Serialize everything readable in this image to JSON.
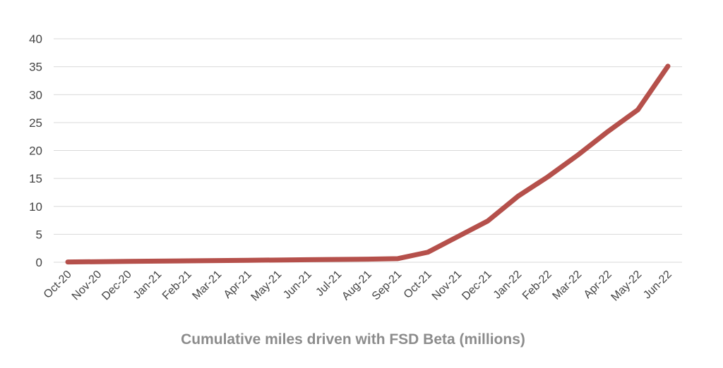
{
  "chart_data": {
    "type": "line",
    "title": "",
    "xlabel": "Cumulative miles driven with FSD Beta (millions)",
    "ylabel": "",
    "categories": [
      "Oct-20",
      "Nov-20",
      "Dec-20",
      "Jan-21",
      "Feb-21",
      "Mar-21",
      "Apr-21",
      "May-21",
      "Jun-21",
      "Jul-21",
      "Aug-21",
      "Sep-21",
      "Oct-21",
      "Nov-21",
      "Dec-21",
      "Jan-22",
      "Feb-22",
      "Mar-22",
      "Apr-22",
      "May-22",
      "Jun-22"
    ],
    "series": [
      {
        "values": [
          0.05,
          0.1,
          0.15,
          0.2,
          0.25,
          0.3,
          0.35,
          0.4,
          0.45,
          0.5,
          0.55,
          0.65,
          1.8,
          4.6,
          7.4,
          11.8,
          15.3,
          19.2,
          23.4,
          27.3,
          35.1
        ]
      }
    ],
    "yticks": [
      0,
      5,
      10,
      15,
      20,
      25,
      30,
      35,
      40
    ],
    "ylim": [
      0,
      40
    ],
    "grid": true,
    "legend": "none",
    "colors": {
      "line": "#b5504b",
      "grid": "#d9d9d9",
      "axis_title": "#8c8c8c"
    }
  }
}
